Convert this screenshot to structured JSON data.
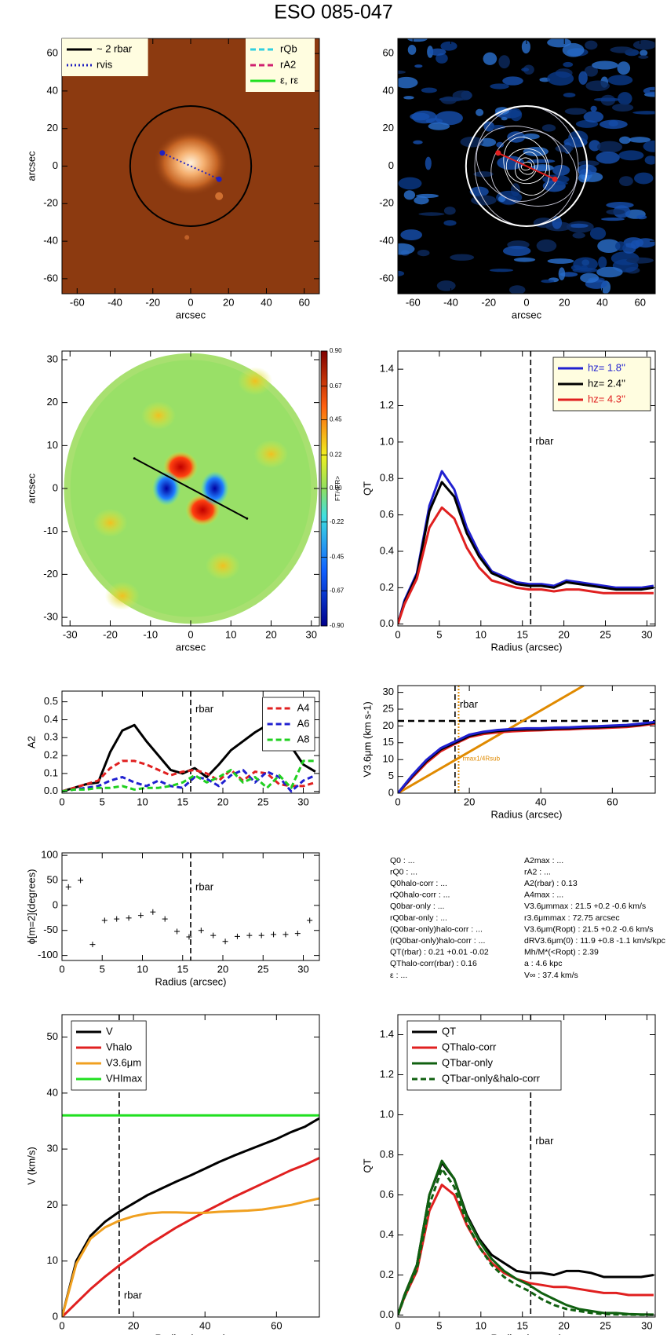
{
  "figure_title": "ESO 085-047",
  "chart_data": [
    {
      "type": "image",
      "style": "stellar",
      "xlabel": "arcsec",
      "ylabel": "arcsec",
      "xlim": [
        -68,
        68
      ],
      "ylim": [
        -68,
        68
      ],
      "xticks": [
        -60,
        -40,
        -20,
        0,
        20,
        40,
        60
      ],
      "yticks": [
        -60,
        -40,
        -20,
        0,
        20,
        40,
        60
      ],
      "circle_radius": 32,
      "bar": [
        [
          -15,
          7
        ],
        [
          15,
          -7
        ]
      ],
      "bar_color": "#2020c0",
      "bar_dash": "dotted",
      "legend_background": "#fffde0",
      "legend_groups": [
        {
          "corner": "top-left",
          "items": [
            {
              "name": "~ 2 rbar",
              "color": "#000000",
              "dash": "solid"
            },
            {
              "name": "rvis",
              "color": "#2020c0",
              "dash": "dotted"
            }
          ]
        },
        {
          "corner": "top-right",
          "items": [
            {
              "name": "rQb",
              "color": "#30d0e0",
              "dash": "dashed"
            },
            {
              "name": "rA2",
              "color": "#d02070",
              "dash": "dashed"
            },
            {
              "name": "ε, rε",
              "color": "#20e020",
              "dash": "solid"
            }
          ]
        }
      ]
    },
    {
      "type": "image",
      "style": "contours",
      "xlabel": "arcsec",
      "xlim": [
        -68,
        68
      ],
      "ylim": [
        -68,
        68
      ],
      "xticks": [
        -60,
        -40,
        -20,
        0,
        20,
        40,
        60
      ],
      "yticks": [
        -60,
        -40,
        -20,
        0,
        20,
        40,
        60
      ],
      "circle_radius": 32,
      "bar": [
        [
          -15,
          7
        ],
        [
          15,
          -7
        ]
      ],
      "bar_color": "#e02020",
      "bar_dash": "solid"
    },
    {
      "type": "image",
      "style": "force",
      "xlabel": "arcsec",
      "ylabel": "arcsec",
      "xlim": [
        -32,
        32
      ],
      "ylim": [
        -32,
        32
      ],
      "xticks": [
        -30,
        -20,
        -10,
        0,
        10,
        20,
        30
      ],
      "yticks": [
        -30,
        -20,
        -10,
        0,
        10,
        20,
        30
      ],
      "circle_radius": 31.5,
      "bar": [
        [
          -14,
          7
        ],
        [
          14,
          -7
        ]
      ],
      "bar_color": "#000000",
      "bar_dash": "solid",
      "colorbar": {
        "range": [
          -0.9,
          0.9
        ],
        "label": "FT/<FR>",
        "ticks": [
          {
            "value": 0.9,
            "label": "0.90"
          },
          0.67,
          0.45,
          0.22,
          {
            "value": 0,
            "label": "0.00"
          },
          -0.22,
          -0.45,
          -0.67,
          {
            "value": -0.9,
            "label": "-0.90"
          }
        ]
      }
    },
    {
      "type": "line",
      "xlabel": "Radius (arcsec)",
      "ylabel": "QT",
      "xlim": [
        0,
        31
      ],
      "ylim": [
        -0.01,
        1.5
      ],
      "xticks": [
        0,
        5,
        10,
        15,
        20,
        25,
        30
      ],
      "yticks": [
        {
          "value": 0,
          "label": "0.0"
        },
        0.2,
        0.4,
        0.6,
        0.8,
        {
          "value": 1,
          "label": "1.0"
        },
        1.2,
        1.4
      ],
      "rbar": 16,
      "rbar_label": "rbar",
      "legend": "top-right",
      "legend_background": "#fffde0",
      "x": [
        0,
        0.8,
        2.3,
        3.8,
        5.3,
        6.8,
        8.3,
        9.8,
        11.3,
        12.8,
        14.3,
        15.8,
        17.3,
        18.8,
        20.3,
        21.8,
        23.3,
        24.8,
        26.3,
        27.8,
        29.3,
        30.8
      ],
      "series": [
        {
          "name": "hz=  1.8''",
          "color": "#2020d0",
          "dash": "solid",
          "values": [
            0,
            0.13,
            0.28,
            0.65,
            0.84,
            0.74,
            0.53,
            0.39,
            0.29,
            0.26,
            0.23,
            0.22,
            0.22,
            0.21,
            0.24,
            0.23,
            0.22,
            0.21,
            0.2,
            0.2,
            0.2,
            0.21
          ]
        },
        {
          "name": "hz=  2.4''",
          "color": "#000000",
          "dash": "solid",
          "values": [
            0,
            0.12,
            0.27,
            0.62,
            0.78,
            0.7,
            0.5,
            0.37,
            0.28,
            0.25,
            0.22,
            0.21,
            0.21,
            0.2,
            0.23,
            0.22,
            0.21,
            0.2,
            0.19,
            0.19,
            0.19,
            0.2
          ]
        },
        {
          "name": "hz=  4.3''",
          "color": "#e02020",
          "dash": "solid",
          "values": [
            0,
            0.11,
            0.25,
            0.53,
            0.64,
            0.58,
            0.42,
            0.31,
            0.24,
            0.22,
            0.2,
            0.19,
            0.19,
            0.18,
            0.19,
            0.19,
            0.18,
            0.17,
            0.17,
            0.17,
            0.17,
            0.17
          ]
        }
      ]
    },
    {
      "type": "line",
      "ylabel": "A2",
      "xlim": [
        0,
        32
      ],
      "ylim": [
        -0.01,
        0.56
      ],
      "xticks": [
        0,
        5,
        10,
        15,
        20,
        25,
        30
      ],
      "yticks": [
        {
          "value": 0,
          "label": "0.0"
        },
        0.1,
        0.2,
        0.3,
        0.4,
        0.5
      ],
      "rbar": 16,
      "rbar_label": "rbar",
      "legend": "top-right",
      "legend_background": "#ffffff",
      "x": [
        0,
        1.5,
        3,
        4.5,
        6,
        7.5,
        9,
        10.5,
        12,
        13.5,
        15,
        16.5,
        18,
        19.5,
        21,
        22.5,
        24,
        25.5,
        27,
        28.5,
        30,
        31.5
      ],
      "series": [
        {
          "color": "#000000",
          "dash": "solid",
          "values": [
            0,
            0.02,
            0.04,
            0.05,
            0.22,
            0.34,
            0.37,
            0.28,
            0.2,
            0.12,
            0.1,
            0.13,
            0.08,
            0.15,
            0.23,
            0.28,
            0.33,
            0.37,
            0.32,
            0.25,
            0.15,
            0.11
          ]
        },
        {
          "name": "A4",
          "color": "#e02020",
          "dash": "dashed",
          "values": [
            0,
            0.02,
            0.04,
            0.06,
            0.13,
            0.17,
            0.17,
            0.15,
            0.12,
            0.09,
            0.11,
            0.12,
            0.1,
            0.06,
            0.12,
            0.06,
            0.11,
            0.1,
            0.04,
            0.03,
            0.03,
            0.05
          ]
        },
        {
          "name": "A6",
          "color": "#2020d0",
          "dash": "dashed",
          "values": [
            0,
            0.01,
            0.02,
            0.03,
            0.06,
            0.08,
            0.05,
            0.03,
            0.06,
            0.03,
            0.02,
            0.08,
            0.07,
            0.03,
            0.09,
            0.12,
            0.05,
            0.11,
            0.08,
            0,
            0.06,
            0.09
          ]
        },
        {
          "name": "A8",
          "color": "#20d020",
          "dash": "dashed",
          "values": [
            0,
            0.01,
            0.01,
            0.02,
            0.02,
            0.03,
            0.01,
            0.02,
            0.02,
            0.03,
            0.05,
            0.09,
            0.05,
            0.08,
            0.12,
            0.05,
            0.08,
            0.02,
            0.09,
            0.02,
            0.17,
            0.17
          ]
        }
      ]
    },
    {
      "type": "line",
      "xlabel": "Radius (arcsec)",
      "ylabel": "V3.6μm (km s-1)",
      "xlim": [
        0,
        72
      ],
      "ylim": [
        0,
        32
      ],
      "xticks": [
        0,
        20,
        40,
        60
      ],
      "yticks": [
        0,
        5,
        10,
        15,
        20,
        25,
        30
      ],
      "rbar": 16,
      "rbar_label": "rbar",
      "hline": 21.5,
      "rmax": 17,
      "rmax_label": "rmax1/4Rsub",
      "rmax_color": "#e08a00",
      "x": [
        0,
        4,
        8,
        12,
        16,
        20,
        24,
        28,
        32,
        36,
        40,
        44,
        48,
        52,
        56,
        60,
        64,
        68,
        72
      ],
      "series": [
        {
          "color": "#e08a00",
          "dash": "solid",
          "x": [
            0,
            52
          ],
          "values": [
            0,
            32
          ]
        },
        {
          "color": "#e02020",
          "dash": "solid",
          "values": [
            0,
            4.6,
            9,
            12.5,
            14.7,
            16.7,
            17.6,
            18.1,
            18.4,
            18.6,
            18.7,
            18.9,
            19,
            19.2,
            19.3,
            19.5,
            19.7,
            20.1,
            20.7
          ]
        },
        {
          "color": "#000000",
          "dash": "solid",
          "values": [
            0,
            5,
            9.5,
            13,
            15,
            17,
            18,
            18.5,
            18.8,
            19,
            19,
            19.2,
            19.3,
            19.5,
            19.6,
            19.8,
            20,
            20.4,
            21
          ]
        },
        {
          "color": "#2020d0",
          "dash": "solid",
          "values": [
            0,
            5.3,
            9.9,
            13.4,
            15.4,
            17.4,
            18.3,
            18.8,
            19.1,
            19.3,
            19.3,
            19.5,
            19.6,
            19.8,
            19.9,
            20.1,
            20.3,
            20.7,
            21.2
          ]
        }
      ]
    },
    {
      "type": "scatter",
      "xlabel": "Radius (arcsec)",
      "ylabel": "ϕ[m=2](degrees)",
      "xlim": [
        0,
        32
      ],
      "ylim": [
        -110,
        105
      ],
      "xticks": [
        0,
        5,
        10,
        15,
        20,
        25,
        30
      ],
      "yticks": [
        -100,
        -50,
        0,
        50,
        100
      ],
      "rbar": 16,
      "rbar_label": "rbar",
      "x": [
        0.8,
        2.3,
        3.8,
        5.3,
        6.8,
        8.3,
        9.8,
        11.3,
        12.8,
        14.3,
        15.8,
        17.3,
        18.8,
        20.3,
        21.8,
        23.3,
        24.8,
        26.3,
        27.8,
        29.3,
        30.8
      ],
      "series": [
        {
          "color": "#000000",
          "values": [
            37,
            50,
            -78,
            -30,
            -27,
            -25,
            -20,
            -13,
            -27,
            -52,
            -63,
            -50,
            -60,
            -72,
            -62,
            -60,
            -60,
            -58,
            -58,
            -56,
            -30
          ]
        }
      ]
    },
    {
      "type": "line",
      "xlabel": "Radius (arcsec)",
      "ylabel": "V (km/s)",
      "xlim": [
        0,
        72
      ],
      "ylim": [
        0,
        54
      ],
      "xticks": [
        0,
        20,
        40,
        60
      ],
      "yticks": [
        0,
        10,
        20,
        30,
        40,
        50
      ],
      "rbar": 16,
      "rbar_label": "rbar",
      "legend": "top-left",
      "legend_background": "#ffffff",
      "x": [
        0,
        4,
        8,
        12,
        16,
        20,
        24,
        28,
        32,
        36,
        40,
        44,
        48,
        52,
        56,
        60,
        64,
        68,
        72
      ],
      "series": [
        {
          "name": "V",
          "color": "#000000",
          "dash": "solid",
          "values": [
            0,
            10,
            14.5,
            17,
            18.8,
            20.3,
            21.8,
            23,
            24.2,
            25.3,
            26.5,
            27.7,
            28.8,
            29.8,
            30.8,
            31.8,
            33,
            34,
            35.5
          ]
        },
        {
          "name": "Vhalo",
          "color": "#e02020",
          "dash": "solid",
          "values": [
            0,
            2.5,
            5,
            7.2,
            9.2,
            11,
            12.8,
            14.4,
            16,
            17.4,
            18.8,
            20.1,
            21.4,
            22.6,
            23.8,
            25,
            26.2,
            27.2,
            28.4
          ]
        },
        {
          "name": "V3.6μm",
          "color": "#f0a020",
          "dash": "solid",
          "values": [
            0,
            9.5,
            14,
            16,
            17.2,
            18,
            18.5,
            18.7,
            18.7,
            18.6,
            18.6,
            18.8,
            18.9,
            19,
            19.2,
            19.6,
            20,
            20.6,
            21.2
          ]
        },
        {
          "name": "VHImax",
          "color": "#20e020",
          "dash": "solid",
          "x": [
            0,
            72
          ],
          "values": [
            36,
            36
          ]
        }
      ]
    },
    {
      "type": "line",
      "xlabel": "Radius (arcsec)",
      "ylabel": "QT",
      "xlim": [
        0,
        31
      ],
      "ylim": [
        -0.01,
        1.5
      ],
      "xticks": [
        0,
        5,
        10,
        15,
        20,
        25,
        30
      ],
      "yticks": [
        {
          "value": 0,
          "label": "0.0"
        },
        0.2,
        0.4,
        0.6,
        0.8,
        {
          "value": 1,
          "label": "1.0"
        },
        1.2,
        1.4
      ],
      "rbar": 16,
      "rbar_label": "rbar",
      "legend": "top-left",
      "legend_background": "#ffffff",
      "x": [
        0,
        0.8,
        2.3,
        3.8,
        5.3,
        6.8,
        8.3,
        9.8,
        11.3,
        12.8,
        14.3,
        15.8,
        17.3,
        18.8,
        20.3,
        21.8,
        23.3,
        24.8,
        26.3,
        27.8,
        29.3,
        30.8
      ],
      "series": [
        {
          "name": "QT",
          "color": "#000000",
          "dash": "solid",
          "values": [
            0,
            0.1,
            0.25,
            0.6,
            0.76,
            0.68,
            0.5,
            0.38,
            0.3,
            0.26,
            0.22,
            0.21,
            0.21,
            0.2,
            0.22,
            0.22,
            0.21,
            0.19,
            0.19,
            0.19,
            0.19,
            0.2
          ]
        },
        {
          "name": "QThalo-corr",
          "color": "#e02020",
          "dash": "solid",
          "values": [
            0,
            0.09,
            0.22,
            0.52,
            0.65,
            0.6,
            0.45,
            0.34,
            0.26,
            0.21,
            0.18,
            0.16,
            0.15,
            0.14,
            0.14,
            0.13,
            0.12,
            0.11,
            0.11,
            0.1,
            0.1,
            0.1
          ]
        },
        {
          "name": "QTbar-only",
          "color": "#106010",
          "dash": "solid",
          "values": [
            0,
            0.1,
            0.25,
            0.6,
            0.77,
            0.68,
            0.49,
            0.37,
            0.28,
            0.22,
            0.18,
            0.15,
            0.11,
            0.08,
            0.05,
            0.03,
            0.02,
            0.01,
            0.01,
            0.005,
            0.003,
            0.002
          ]
        },
        {
          "name": "QTbar-only&halo-corr",
          "color": "#106010",
          "dash": "dashed",
          "values": [
            0,
            0.09,
            0.23,
            0.55,
            0.73,
            0.64,
            0.46,
            0.34,
            0.25,
            0.19,
            0.15,
            0.12,
            0.08,
            0.05,
            0.03,
            0.02,
            0.01,
            0.005,
            0.003,
            0.002,
            0.001,
            0.001
          ]
        }
      ]
    }
  ],
  "text_panel": {
    "left": [
      "Q0 : ...",
      "rQ0 : ...",
      "Q0halo-corr : ...",
      "rQ0halo-corr : ...",
      "Q0bar-only : ...",
      "rQ0bar-only : ...",
      "(Q0bar-only)halo-corr : ...",
      "(rQ0bar-only)halo-corr : ...",
      "QT(rbar) :  0.21 +0.01 -0.02",
      "QThalo-corr(rbar) :  0.16",
      "ε : ..."
    ],
    "right": [
      "A2max : ...",
      "rA2 : ...",
      "A2(rbar) :  0.13",
      "A4max : ...",
      "V3.6μmmax :  21.5 +0.2 -0.6 km/s",
      "r3.6μmmax :  72.75 arcsec",
      "V3.6μm(Ropt) :  21.5 +0.2 -0.6 km/s",
      "dRV3.6μm(0) :  11.9 +0.8 -1.1 km/s/kpc",
      "Mh/M*(<Ropt) :  2.39",
      "a :  4.6 kpc",
      "V∞ :  37.4 km/s"
    ]
  }
}
